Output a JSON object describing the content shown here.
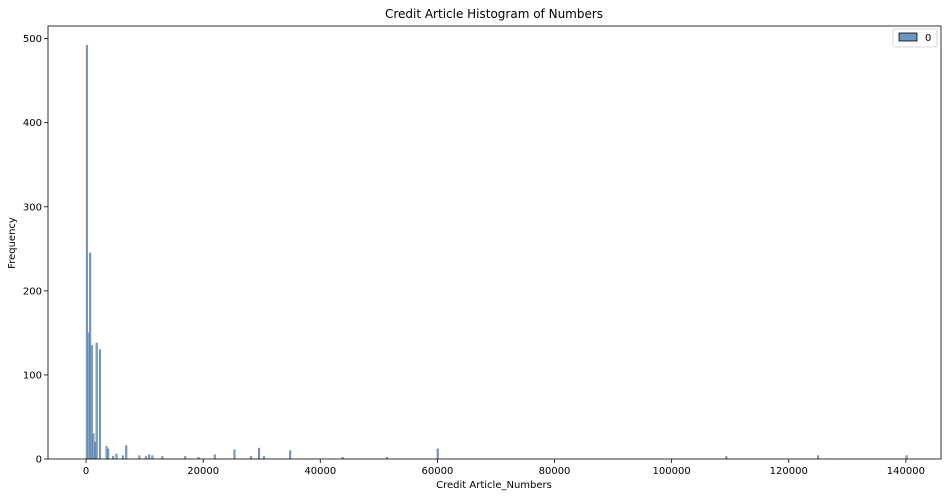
{
  "chart_data": {
    "type": "bar",
    "title": "Credit Article Histogram of Numbers",
    "xlabel": "Credit Article_Numbers",
    "ylabel": "Frequency",
    "xlim": [
      -6500,
      146000
    ],
    "ylim": [
      0,
      515
    ],
    "xticks": [
      0,
      20000,
      40000,
      60000,
      80000,
      100000,
      120000,
      140000
    ],
    "xtick_labels": [
      "0",
      "20000",
      "40000",
      "60000",
      "80000",
      "100000",
      "120000",
      "140000"
    ],
    "yticks": [
      0,
      100,
      200,
      300,
      400,
      500
    ],
    "ytick_labels": [
      "0",
      "100",
      "200",
      "300",
      "400",
      "500"
    ],
    "grid": false,
    "legend": {
      "placement": "top-right",
      "entries": [
        "0"
      ]
    },
    "bin_width": 280,
    "color": "#6a97c1",
    "edge_color": "#4f6f8f",
    "series": [
      {
        "name": "0",
        "bins": [
          {
            "x": 0,
            "count": 492
          },
          {
            "x": 280,
            "count": 150
          },
          {
            "x": 560,
            "count": 245
          },
          {
            "x": 840,
            "count": 135
          },
          {
            "x": 1120,
            "count": 30
          },
          {
            "x": 1400,
            "count": 20
          },
          {
            "x": 1680,
            "count": 138
          },
          {
            "x": 2240,
            "count": 130
          },
          {
            "x": 3360,
            "count": 15
          },
          {
            "x": 3640,
            "count": 12
          },
          {
            "x": 4480,
            "count": 3
          },
          {
            "x": 5040,
            "count": 6
          },
          {
            "x": 6160,
            "count": 4
          },
          {
            "x": 6720,
            "count": 16
          },
          {
            "x": 8960,
            "count": 4
          },
          {
            "x": 10080,
            "count": 3
          },
          {
            "x": 10640,
            "count": 5
          },
          {
            "x": 11200,
            "count": 4
          },
          {
            "x": 12880,
            "count": 3
          },
          {
            "x": 16800,
            "count": 3
          },
          {
            "x": 19040,
            "count": 2
          },
          {
            "x": 21840,
            "count": 5
          },
          {
            "x": 25200,
            "count": 11
          },
          {
            "x": 28000,
            "count": 3
          },
          {
            "x": 29400,
            "count": 13
          },
          {
            "x": 30240,
            "count": 3
          },
          {
            "x": 34720,
            "count": 10
          },
          {
            "x": 43680,
            "count": 2
          },
          {
            "x": 51240,
            "count": 2
          },
          {
            "x": 59920,
            "count": 12
          },
          {
            "x": 109200,
            "count": 3
          },
          {
            "x": 124880,
            "count": 4
          },
          {
            "x": 140000,
            "count": 4
          }
        ]
      }
    ]
  }
}
